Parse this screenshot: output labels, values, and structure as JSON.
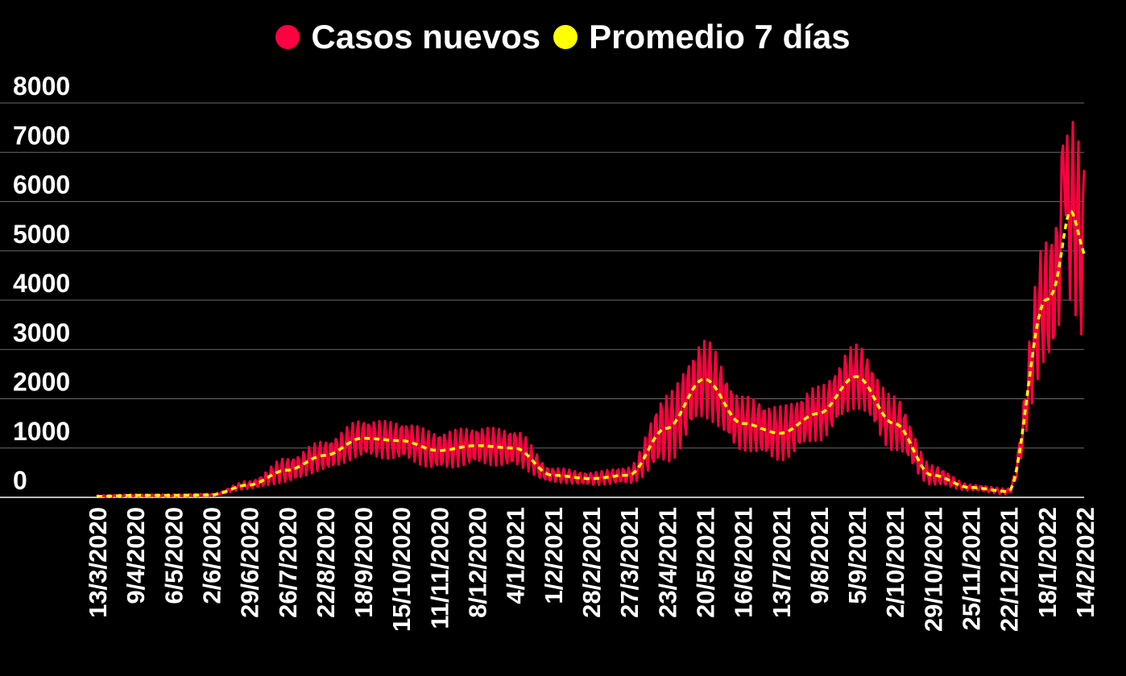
{
  "chart_data": {
    "type": "line",
    "title": "",
    "xlabel": "",
    "ylabel": "",
    "ylim": [
      0,
      8000
    ],
    "yticks": [
      0,
      1000,
      2000,
      3000,
      4000,
      5000,
      6000,
      7000,
      8000
    ],
    "y_tick_labels": [
      "0",
      "1000",
      "2000",
      "3000",
      "4000",
      "5000",
      "6000",
      "7000",
      "8000"
    ],
    "x_tick_labels": [
      "13/3/2020",
      "9/4/2020",
      "6/5/2020",
      "2/6/2020",
      "29/6/2020",
      "26/7/2020",
      "22/8/2020",
      "18/9/2020",
      "15/10/2020",
      "11/11/2020",
      "8/12/2020",
      "4/1/2021",
      "1/2/2021",
      "28/2/2021",
      "27/3/2021",
      "23/4/2021",
      "20/5/2021",
      "16/6/2021",
      "13/7/2021",
      "9/8/2021",
      "5/9/2021",
      "2/10/2021",
      "29/10/2021",
      "25/11/2021",
      "22/12/2021",
      "18/1/2022",
      "14/2/2022"
    ],
    "grid": true,
    "legend": "top-center",
    "series": [
      {
        "name": "Casos nuevos",
        "color": "#ff0040",
        "style": "solid-daily",
        "weekly_points": [
          {
            "x": "13/3/2020",
            "y": 20,
            "amp": 20
          },
          {
            "x": "9/4/2020",
            "y": 40,
            "amp": 20
          },
          {
            "x": "6/5/2020",
            "y": 40,
            "amp": 20
          },
          {
            "x": "2/6/2020",
            "y": 50,
            "amp": 20
          },
          {
            "x": "29/6/2020",
            "y": 250,
            "amp": 80
          },
          {
            "x": "26/7/2020",
            "y": 600,
            "amp": 250
          },
          {
            "x": "22/8/2020",
            "y": 850,
            "amp": 300
          },
          {
            "x": "18/9/2020",
            "y": 1200,
            "amp": 380
          },
          {
            "x": "15/10/2020",
            "y": 1150,
            "amp": 380
          },
          {
            "x": "11/11/2020",
            "y": 950,
            "amp": 380
          },
          {
            "x": "8/12/2020",
            "y": 1050,
            "amp": 380
          },
          {
            "x": "4/1/2021",
            "y": 1000,
            "amp": 380
          },
          {
            "x": "1/2/2021",
            "y": 450,
            "amp": 150
          },
          {
            "x": "28/2/2021",
            "y": 400,
            "amp": 130
          },
          {
            "x": "27/3/2021",
            "y": 500,
            "amp": 170
          },
          {
            "x": "23/4/2021",
            "y": 1600,
            "amp": 700
          },
          {
            "x": "20/5/2021",
            "y": 2400,
            "amp": 800
          },
          {
            "x": "16/6/2021",
            "y": 1500,
            "amp": 550
          },
          {
            "x": "13/7/2021",
            "y": 1300,
            "amp": 550
          },
          {
            "x": "9/8/2021",
            "y": 1700,
            "amp": 550
          },
          {
            "x": "5/9/2021",
            "y": 2400,
            "amp": 650
          },
          {
            "x": "2/10/2021",
            "y": 1500,
            "amp": 550
          },
          {
            "x": "29/10/2021",
            "y": 450,
            "amp": 200
          },
          {
            "x": "25/11/2021",
            "y": 200,
            "amp": 60
          },
          {
            "x": "22/12/2021",
            "y": 120,
            "amp": 60
          },
          {
            "x": "18/1/2022",
            "y": 4200,
            "amp": 1300
          },
          {
            "x": "14/2/2022",
            "y": 4700,
            "amp": 2000
          }
        ]
      },
      {
        "name": "Promedio 7 días",
        "color": "#ffff00",
        "style": "dashed",
        "points": [
          {
            "x": "13/3/2020",
            "y": 20
          },
          {
            "x": "9/4/2020",
            "y": 40
          },
          {
            "x": "6/5/2020",
            "y": 40
          },
          {
            "x": "2/6/2020",
            "y": 50
          },
          {
            "x": "29/6/2020",
            "y": 250
          },
          {
            "x": "26/7/2020",
            "y": 550
          },
          {
            "x": "22/8/2020",
            "y": 850
          },
          {
            "x": "18/9/2020",
            "y": 1200
          },
          {
            "x": "15/10/2020",
            "y": 1150
          },
          {
            "x": "11/11/2020",
            "y": 950
          },
          {
            "x": "8/12/2020",
            "y": 1050
          },
          {
            "x": "4/1/2021",
            "y": 1000
          },
          {
            "x": "1/2/2021",
            "y": 450
          },
          {
            "x": "28/2/2021",
            "y": 380
          },
          {
            "x": "27/3/2021",
            "y": 450
          },
          {
            "x": "23/4/2021",
            "y": 1400
          },
          {
            "x": "20/5/2021",
            "y": 2400
          },
          {
            "x": "16/6/2021",
            "y": 1500
          },
          {
            "x": "13/7/2021",
            "y": 1300
          },
          {
            "x": "9/8/2021",
            "y": 1700
          },
          {
            "x": "5/9/2021",
            "y": 2450
          },
          {
            "x": "2/10/2021",
            "y": 1500
          },
          {
            "x": "29/10/2021",
            "y": 450
          },
          {
            "x": "25/11/2021",
            "y": 200
          },
          {
            "x": "22/12/2021",
            "y": 120
          },
          {
            "x": "18/1/2022",
            "y": 4000
          },
          {
            "x": "14/2/2022",
            "y": 4700
          }
        ]
      }
    ],
    "peak_overrides": [
      {
        "x_index": 25.65,
        "y": 5800,
        "series": "Promedio 7 días"
      },
      {
        "x_index": 25.45,
        "y": 7300,
        "series": "Casos nuevos"
      }
    ]
  }
}
